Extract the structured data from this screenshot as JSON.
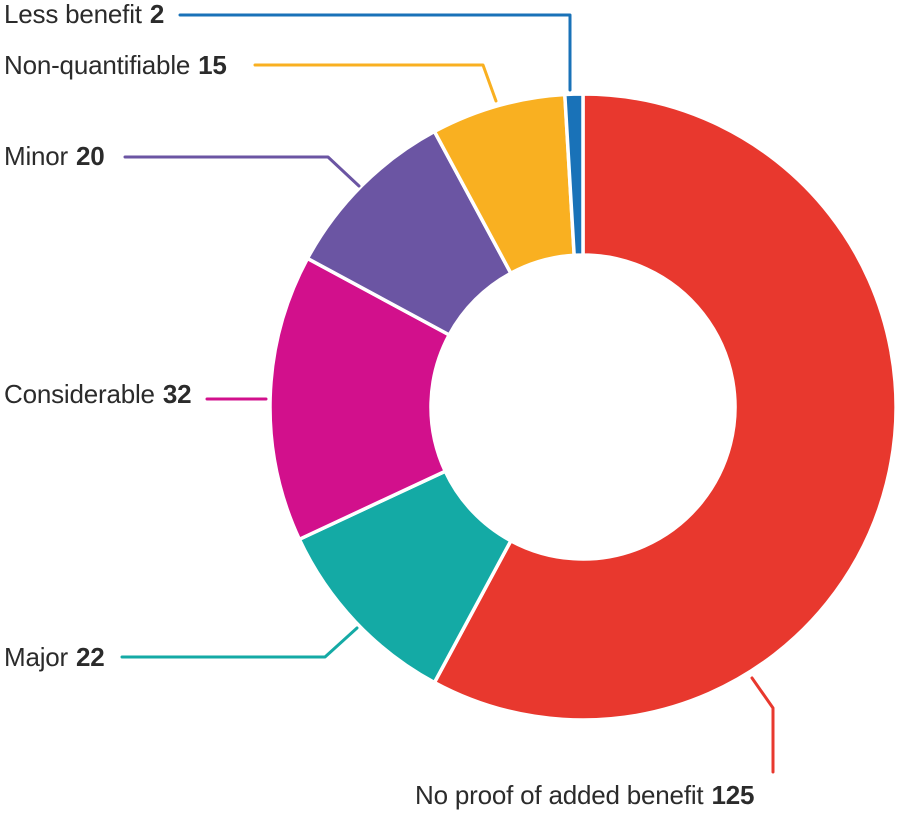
{
  "chart_data": {
    "type": "pie",
    "subtype": "donut",
    "title": "",
    "legend_position": "callout-labels",
    "direction": "clockwise-from-top, drawn in reverse of listed order",
    "segments": [
      {
        "label": "Less benefit",
        "value": 2,
        "color": "#1972b8"
      },
      {
        "label": "Non-quantifiable",
        "value": 15,
        "color": "#f9b021"
      },
      {
        "label": "Minor",
        "value": 20,
        "color": "#6b55a3"
      },
      {
        "label": "Considerable",
        "value": 32,
        "color": "#d2108c"
      },
      {
        "label": "Major",
        "value": 22,
        "color": "#14aaa5"
      },
      {
        "label": "No proof of added benefit",
        "value": 125,
        "color": "#e8382e"
      }
    ]
  }
}
